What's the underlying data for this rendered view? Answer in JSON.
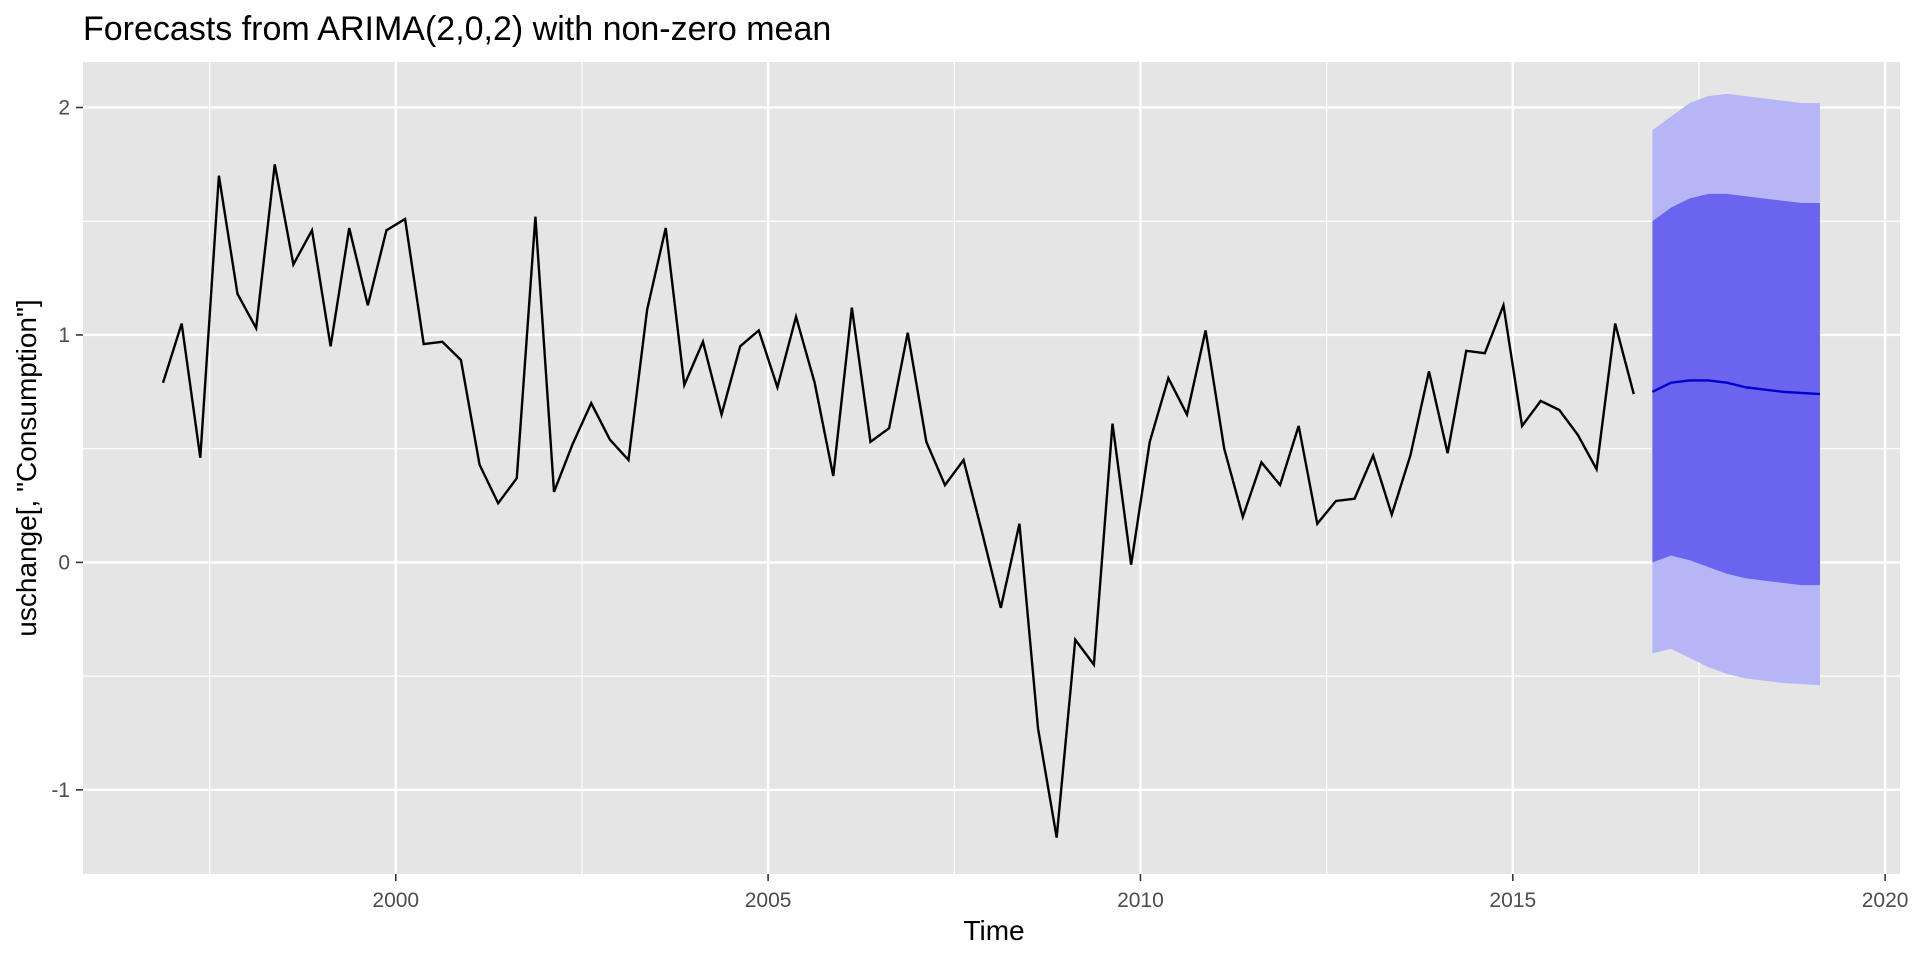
{
  "chart_data": {
    "type": "line",
    "title": "Forecasts from ARIMA(2,0,2) with non-zero mean",
    "xlabel": "Time",
    "ylabel": "uschange[, \"Consumption\"]",
    "xlim": [
      1995.8,
      2020.2
    ],
    "ylim": [
      -1.37,
      2.2
    ],
    "x_ticks": [
      2000,
      2005,
      2010,
      2015,
      2020
    ],
    "x_tick_labels": [
      "2000",
      "2005",
      "2010",
      "2015",
      "2020"
    ],
    "y_ticks": [
      -1,
      0,
      1,
      2
    ],
    "y_tick_labels": [
      "-1",
      "0",
      "1",
      "2"
    ],
    "grid": true,
    "legend": "none",
    "colors": {
      "panel": "#e5e5e5",
      "grid": "#ffffff",
      "history": "#000000",
      "forecast": "#0000cc",
      "pi80": "#6b64ee",
      "pi95": "#b6b5f5"
    },
    "history": {
      "start": 1996.875,
      "step": 0.25,
      "values": [
        0.79,
        1.05,
        0.46,
        1.7,
        1.18,
        1.03,
        1.75,
        1.31,
        1.46,
        0.95,
        1.47,
        1.13,
        1.46,
        1.51,
        0.96,
        0.97,
        0.89,
        0.43,
        0.26,
        0.37,
        1.52,
        0.31,
        0.52,
        0.7,
        0.54,
        0.45,
        1.11,
        1.47,
        0.78,
        0.97,
        0.65,
        0.95,
        1.02,
        0.77,
        1.08,
        0.79,
        0.38,
        1.12,
        0.53,
        0.59,
        1.01,
        0.53,
        0.34,
        0.45,
        0.13,
        -0.2,
        0.17,
        -0.73,
        -1.21,
        -0.34,
        -0.45,
        0.61,
        -0.01,
        0.53,
        0.81,
        0.65,
        1.02,
        0.5,
        0.2,
        0.44,
        0.34,
        0.6,
        0.17,
        0.27,
        0.28,
        0.47,
        0.21,
        0.47,
        0.84,
        0.48,
        0.93,
        0.92,
        1.13,
        0.6,
        0.71,
        0.67,
        0.56,
        0.41,
        1.05,
        0.74
      ]
    },
    "forecast": {
      "start": 2016.875,
      "step": 0.25,
      "mean": [
        0.75,
        0.79,
        0.8,
        0.8,
        0.79,
        0.77,
        0.76,
        0.75,
        0.745,
        0.74
      ],
      "lo80": [
        0.0,
        0.03,
        0.01,
        -0.02,
        -0.05,
        -0.07,
        -0.08,
        -0.09,
        -0.1,
        -0.1
      ],
      "hi80": [
        1.5,
        1.56,
        1.6,
        1.62,
        1.62,
        1.61,
        1.6,
        1.59,
        1.58,
        1.58
      ],
      "lo95": [
        -0.4,
        -0.38,
        -0.42,
        -0.46,
        -0.49,
        -0.51,
        -0.52,
        -0.53,
        -0.535,
        -0.54
      ],
      "hi95": [
        1.9,
        1.96,
        2.02,
        2.05,
        2.06,
        2.05,
        2.04,
        2.03,
        2.02,
        2.02
      ]
    }
  }
}
